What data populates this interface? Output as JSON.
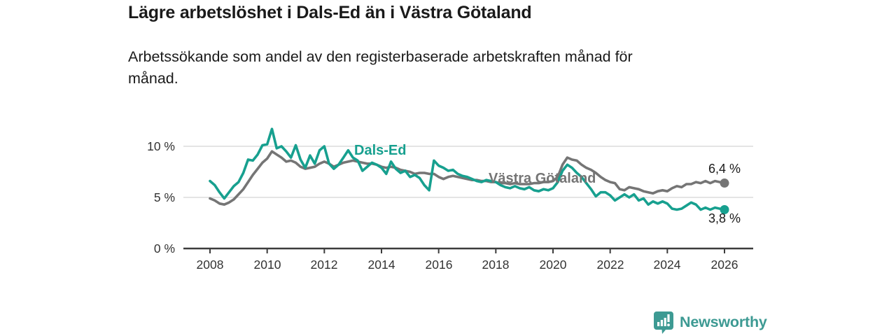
{
  "page": {
    "title": "Lägre arbetslöshet i Dals-Ed än i Västra Götaland",
    "subtitle": "Arbetssökande som andel av den registerbaserade arbetskraften månad för månad."
  },
  "footer": {
    "brand": "Newsworthy",
    "logo_icon": "bar-chart-speech-bubble-icon"
  },
  "colors": {
    "dals_ed": "#17a08f",
    "vastra_gotaland": "#757575",
    "grid": "#dcdcdc",
    "axis": "#3c3c3c",
    "text": "#1a1a1a",
    "brand": "#3d9a93"
  },
  "chart_data": {
    "type": "line",
    "title": "Lägre arbetslöshet i Dals-Ed än i Västra Götaland",
    "subtitle": "Arbetssökande som andel av den registerbaserade arbetskraften månad för månad.",
    "x_start_year": 2008,
    "x_end_year": 2026,
    "x_step_months": 2,
    "x_tick_labels": [
      "2008",
      "2010",
      "2012",
      "2014",
      "2016",
      "2018",
      "2020",
      "2022",
      "2024",
      "2026"
    ],
    "y_tick_labels": [
      "10 %",
      "5 %",
      "0 %"
    ],
    "y_tick_values": [
      10,
      5,
      0
    ],
    "ylim": [
      0,
      12.5
    ],
    "grid": "horizontal",
    "legend": "inline-labels",
    "y_unit": "%",
    "series": [
      {
        "name": "Dals-Ed",
        "color": "#17a08f",
        "end_label": "3,8 %",
        "end_value": 3.8,
        "values": [
          6.6,
          6.2,
          5.5,
          4.9,
          5.5,
          6.1,
          6.5,
          7.4,
          8.7,
          8.6,
          9.2,
          10.1,
          10.2,
          11.7,
          9.8,
          10.0,
          9.5,
          8.9,
          10.1,
          8.7,
          7.9,
          9.1,
          8.3,
          9.6,
          10.0,
          8.3,
          7.8,
          8.2,
          8.9,
          9.6,
          8.9,
          8.6,
          7.6,
          8.0,
          8.4,
          8.2,
          7.9,
          7.3,
          8.5,
          7.8,
          7.4,
          7.6,
          7.0,
          7.2,
          6.9,
          6.2,
          5.7,
          8.6,
          8.1,
          7.9,
          7.6,
          7.7,
          7.3,
          7.1,
          7.0,
          6.8,
          6.6,
          6.5,
          6.7,
          6.6,
          6.5,
          6.2,
          6.0,
          5.9,
          6.1,
          5.9,
          5.8,
          6.0,
          5.7,
          5.6,
          5.8,
          5.7,
          5.9,
          6.5,
          7.6,
          8.2,
          7.9,
          7.4,
          7.0,
          6.4,
          5.8,
          5.1,
          5.5,
          5.5,
          5.2,
          4.7,
          5.0,
          5.3,
          5.0,
          5.3,
          4.7,
          4.9,
          4.3,
          4.6,
          4.4,
          4.6,
          4.4,
          3.9,
          3.8,
          3.9,
          4.2,
          4.5,
          4.3,
          3.8,
          4.0,
          3.8,
          4.0,
          3.9,
          3.8
        ]
      },
      {
        "name": "Västra Götaland",
        "color": "#757575",
        "end_label": "6,4 %",
        "end_value": 6.4,
        "values": [
          4.9,
          4.7,
          4.4,
          4.3,
          4.5,
          4.8,
          5.3,
          5.8,
          6.5,
          7.2,
          7.8,
          8.4,
          8.8,
          9.5,
          9.2,
          8.9,
          8.5,
          8.6,
          8.4,
          8.0,
          7.8,
          7.9,
          8.0,
          8.3,
          8.5,
          8.3,
          8.0,
          8.2,
          8.4,
          8.5,
          8.6,
          8.5,
          8.4,
          8.3,
          8.3,
          8.2,
          8.0,
          7.9,
          8.0,
          7.9,
          7.7,
          7.6,
          7.5,
          7.3,
          7.4,
          7.4,
          7.3,
          7.3,
          7.0,
          6.8,
          7.0,
          7.1,
          7.0,
          6.9,
          6.8,
          6.7,
          6.7,
          6.6,
          6.6,
          6.5,
          6.5,
          6.4,
          6.4,
          6.3,
          6.4,
          6.3,
          6.3,
          6.3,
          6.4,
          6.4,
          6.5,
          6.5,
          6.6,
          7.0,
          8.2,
          8.9,
          8.7,
          8.6,
          8.2,
          7.9,
          7.7,
          7.4,
          7.0,
          6.7,
          6.5,
          6.4,
          5.8,
          5.7,
          6.0,
          5.9,
          5.8,
          5.6,
          5.5,
          5.4,
          5.6,
          5.7,
          5.6,
          5.9,
          6.1,
          6.0,
          6.3,
          6.3,
          6.5,
          6.4,
          6.6,
          6.4,
          6.6,
          6.5,
          6.4
        ]
      }
    ]
  }
}
